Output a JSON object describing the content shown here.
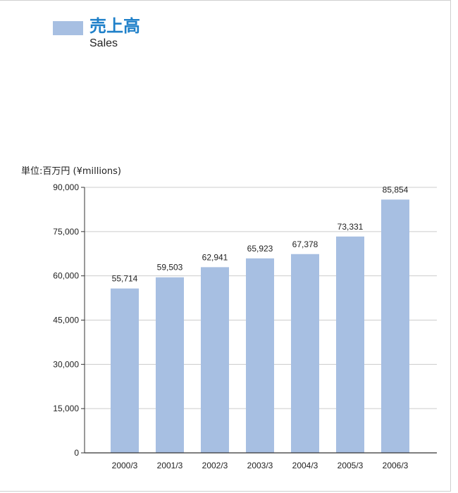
{
  "colors": {
    "bar": "#a7bfe2",
    "title": "#1f80c9",
    "gridline": "#cccccc",
    "axis": "#333333"
  },
  "legend": {
    "title_ja": "売上高",
    "title_en": "Sales"
  },
  "unit_label": "単位:百万円 (¥millions)",
  "chart_data": {
    "type": "bar",
    "title": "売上高",
    "subtitle": "Sales",
    "categories": [
      "2000/3",
      "2001/3",
      "2002/3",
      "2003/3",
      "2004/3",
      "2005/3",
      "2006/3"
    ],
    "values": [
      55714,
      59503,
      62941,
      65923,
      67378,
      73331,
      85854
    ],
    "value_labels": [
      "55,714",
      "59,503",
      "62,941",
      "65,923",
      "67,378",
      "73,331",
      "85,854"
    ],
    "ylim": [
      0,
      90000
    ],
    "yticks": [
      0,
      15000,
      30000,
      45000,
      60000,
      75000,
      90000
    ],
    "ytick_labels": [
      "0",
      "15,000",
      "30,000",
      "45,000",
      "60,000",
      "75,000",
      "90,000"
    ],
    "ylabel": "単位:百万円 (¥millions)",
    "xlabel": "",
    "grid": true,
    "legend_position": "top-left"
  }
}
